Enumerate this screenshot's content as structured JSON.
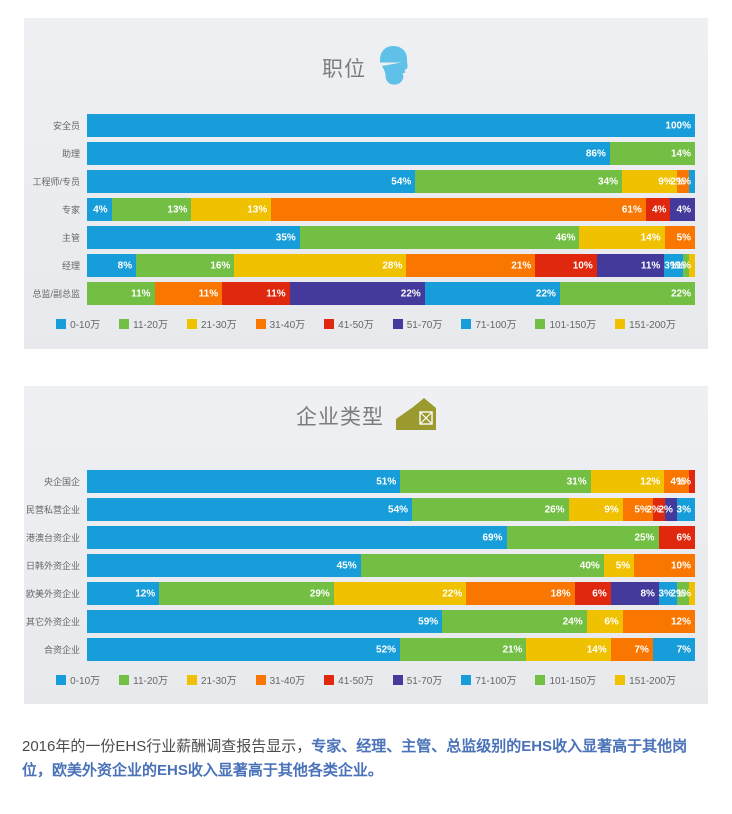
{
  "series_colors": {
    "0-10万": "#179dd9",
    "11-20万": "#72bf44",
    "21-30万": "#efc100",
    "31-40万": "#f97600",
    "41-50万": "#e0280f",
    "51-70万": "#433a9b",
    "71-100万": "#179dd9",
    "101-150万": "#72bf44",
    "151-200万": "#efc100"
  },
  "icons": {
    "chart1_icon": "hard-hat-worker-icon",
    "chart1_icon_color": "#5fc0e8",
    "chart2_icon": "barn-icon",
    "chart2_icon_color": "#9a9a2e"
  },
  "chart_data": [
    {
      "type": "bar",
      "variant": "stacked-horizontal-100-percent",
      "orientation": "horizontal",
      "unit": "%",
      "title": "职位",
      "legend_position": "bottom",
      "grid": false,
      "categories": [
        "安全员",
        "助理",
        "工程师/专员",
        "专家",
        "主管",
        "经理",
        "总监/副总监"
      ],
      "legend": [
        "0-10万",
        "11-20万",
        "21-30万",
        "31-40万",
        "41-50万",
        "51-70万",
        "71-100万",
        "101-150万",
        "151-200万"
      ],
      "rows": [
        {
          "label": "安全员",
          "segments": [
            {
              "bucket": "0-10万",
              "value": 100
            }
          ]
        },
        {
          "label": "助理",
          "segments": [
            {
              "bucket": "0-10万",
              "value": 86
            },
            {
              "bucket": "11-20万",
              "value": 14
            }
          ]
        },
        {
          "label": "工程师/专员",
          "segments": [
            {
              "bucket": "0-10万",
              "value": 54
            },
            {
              "bucket": "11-20万",
              "value": 34
            },
            {
              "bucket": "21-30万",
              "value": 9
            },
            {
              "bucket": "31-40万",
              "value": 2
            },
            {
              "bucket": "71-100万",
              "value": 1
            }
          ]
        },
        {
          "label": "专家",
          "segments": [
            {
              "bucket": "0-10万",
              "value": 4
            },
            {
              "bucket": "11-20万",
              "value": 13
            },
            {
              "bucket": "21-30万",
              "value": 13
            },
            {
              "bucket": "31-40万",
              "value": 61
            },
            {
              "bucket": "41-50万",
              "value": 4
            },
            {
              "bucket": "51-70万",
              "value": 4
            }
          ]
        },
        {
          "label": "主管",
          "segments": [
            {
              "bucket": "0-10万",
              "value": 35
            },
            {
              "bucket": "11-20万",
              "value": 46
            },
            {
              "bucket": "21-30万",
              "value": 14
            },
            {
              "bucket": "31-40万",
              "value": 5
            }
          ]
        },
        {
          "label": "经理",
          "segments": [
            {
              "bucket": "0-10万",
              "value": 8
            },
            {
              "bucket": "11-20万",
              "value": 16
            },
            {
              "bucket": "21-30万",
              "value": 28
            },
            {
              "bucket": "31-40万",
              "value": 21
            },
            {
              "bucket": "41-50万",
              "value": 10
            },
            {
              "bucket": "51-70万",
              "value": 11
            },
            {
              "bucket": "71-100万",
              "value": 3
            },
            {
              "bucket": "101-150万",
              "value": 1
            },
            {
              "bucket": "151-200万",
              "value": 1
            }
          ]
        },
        {
          "label": "总监/副总监",
          "segments": [
            {
              "bucket": "11-20万",
              "value": 11
            },
            {
              "bucket": "31-40万",
              "value": 11
            },
            {
              "bucket": "41-50万",
              "value": 11
            },
            {
              "bucket": "51-70万",
              "value": 22
            },
            {
              "bucket": "71-100万",
              "value": 22
            },
            {
              "bucket": "101-150万",
              "value": 22
            }
          ]
        }
      ]
    },
    {
      "type": "bar",
      "variant": "stacked-horizontal-100-percent",
      "orientation": "horizontal",
      "unit": "%",
      "title": "企业类型",
      "legend_position": "bottom",
      "grid": false,
      "categories": [
        "央企国企",
        "民营私营企业",
        "港澳台资企业",
        "日韩外资企业",
        "欧美外资企业",
        "其它外资企业",
        "合资企业"
      ],
      "legend": [
        "0-10万",
        "11-20万",
        "21-30万",
        "31-40万",
        "41-50万",
        "51-70万",
        "71-100万",
        "101-150万",
        "151-200万"
      ],
      "rows": [
        {
          "label": "央企国企",
          "segments": [
            {
              "bucket": "0-10万",
              "value": 51
            },
            {
              "bucket": "11-20万",
              "value": 31
            },
            {
              "bucket": "21-30万",
              "value": 12
            },
            {
              "bucket": "31-40万",
              "value": 4
            },
            {
              "bucket": "41-50万",
              "value": 1
            }
          ]
        },
        {
          "label": "民营私营企业",
          "segments": [
            {
              "bucket": "0-10万",
              "value": 54
            },
            {
              "bucket": "11-20万",
              "value": 26
            },
            {
              "bucket": "21-30万",
              "value": 9
            },
            {
              "bucket": "31-40万",
              "value": 5
            },
            {
              "bucket": "41-50万",
              "value": 2
            },
            {
              "bucket": "51-70万",
              "value": 2
            },
            {
              "bucket": "71-100万",
              "value": 3
            }
          ]
        },
        {
          "label": "港澳台资企业",
          "segments": [
            {
              "bucket": "0-10万",
              "value": 69
            },
            {
              "bucket": "11-20万",
              "value": 25
            },
            {
              "bucket": "41-50万",
              "value": 6
            }
          ]
        },
        {
          "label": "日韩外资企业",
          "segments": [
            {
              "bucket": "0-10万",
              "value": 45
            },
            {
              "bucket": "11-20万",
              "value": 40
            },
            {
              "bucket": "21-30万",
              "value": 5
            },
            {
              "bucket": "31-40万",
              "value": 10
            }
          ]
        },
        {
          "label": "欧美外资企业",
          "segments": [
            {
              "bucket": "0-10万",
              "value": 12
            },
            {
              "bucket": "11-20万",
              "value": 29
            },
            {
              "bucket": "21-30万",
              "value": 22
            },
            {
              "bucket": "31-40万",
              "value": 18
            },
            {
              "bucket": "41-50万",
              "value": 6
            },
            {
              "bucket": "51-70万",
              "value": 8
            },
            {
              "bucket": "71-100万",
              "value": 3
            },
            {
              "bucket": "101-150万",
              "value": 2
            },
            {
              "bucket": "151-200万",
              "value": 1
            }
          ]
        },
        {
          "label": "其它外资企业",
          "segments": [
            {
              "bucket": "0-10万",
              "value": 59
            },
            {
              "bucket": "11-20万",
              "value": 24
            },
            {
              "bucket": "21-30万",
              "value": 6
            },
            {
              "bucket": "31-40万",
              "value": 12
            }
          ]
        },
        {
          "label": "合资企业",
          "segments": [
            {
              "bucket": "0-10万",
              "value": 52
            },
            {
              "bucket": "11-20万",
              "value": 21
            },
            {
              "bucket": "21-30万",
              "value": 14
            },
            {
              "bucket": "31-40万",
              "value": 7
            },
            {
              "bucket": "71-100万",
              "value": 7
            }
          ]
        }
      ]
    }
  ],
  "note": {
    "prefix": "2016年的一份EHS行业薪酬调查报告显示，",
    "highlight": "专家、经理、主管、总监级别的EHS收入显著高于其他岗位，欧美外资企业的EHS收入显著高于其他各类企业。"
  }
}
